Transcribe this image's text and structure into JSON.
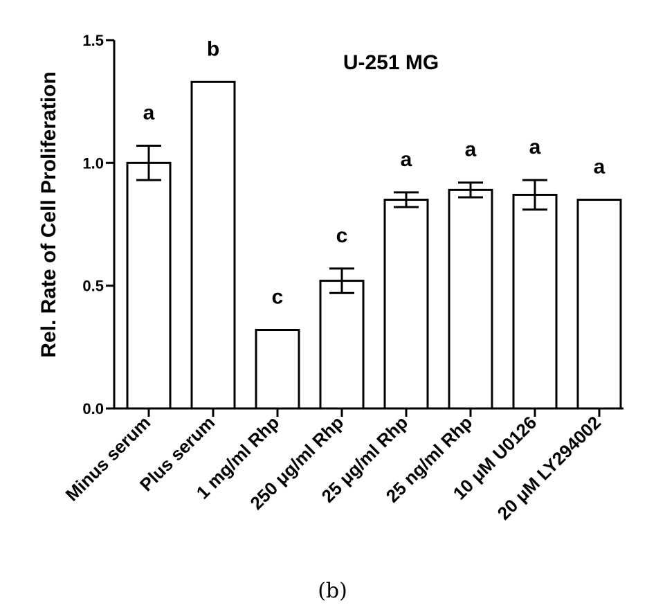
{
  "caption": "(b)",
  "chart_data": {
    "type": "bar",
    "title": "U-251 MG",
    "xlabel": "",
    "ylabel": "Rel. Rate of Cell Proliferation",
    "ylim": [
      0,
      1.5
    ],
    "yticks": [
      "0.0",
      "0.5",
      "1.0",
      "1.5"
    ],
    "grid": false,
    "legend": "none",
    "bar_fill": "#ffffff",
    "bar_stroke": "#000000",
    "categories": [
      "Minus serum",
      "Plus serum",
      "1 mg/ml Rhp",
      "250 μg/ml Rhp",
      "25 μg/ml Rhp",
      "25 ng/ml Rhp",
      "10 μM U0126",
      "20 μM LY294002"
    ],
    "values": [
      1.0,
      1.33,
      0.32,
      0.52,
      0.85,
      0.89,
      0.87,
      0.85
    ],
    "errors": [
      0.07,
      0.0,
      0.0,
      0.05,
      0.03,
      0.03,
      0.06,
      0.0
    ],
    "annotations": [
      "a",
      "b",
      "c",
      "c",
      "a",
      "a",
      "a",
      "a"
    ]
  }
}
